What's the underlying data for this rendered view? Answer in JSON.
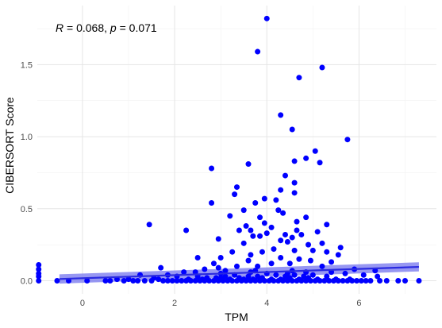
{
  "chart_data": {
    "type": "scatter",
    "title": "",
    "xlabel": "TPM",
    "ylabel": "CIBERSORT Score",
    "xlim": [
      -0.98,
      7.68
    ],
    "ylim": [
      -0.091,
      1.91
    ],
    "x_ticks": [
      0,
      2,
      4,
      6
    ],
    "y_ticks": [
      0.0,
      0.5,
      1.0,
      1.5
    ],
    "x_tick_labels": [
      "0",
      "2",
      "4",
      "6"
    ],
    "y_tick_labels": [
      "0.0",
      "0.5",
      "1.0",
      "1.5"
    ],
    "grid": true,
    "annotation": {
      "r_label": "R",
      "r_value": " = 0.068, ",
      "p_label": "p",
      "p_value": " = 0.071"
    },
    "colors": {
      "points": "#0000ff",
      "line": "#2a2ae0",
      "ribbon": "#8585f0"
    },
    "regression": {
      "x": [
        -0.5,
        7.3
      ],
      "y": [
        0.012,
        0.096
      ],
      "ci_lower": [
        -0.02,
        0.065
      ],
      "ci_upper": [
        0.045,
        0.128
      ]
    },
    "series": [
      {
        "values": [
          [
            4.0,
            1.82
          ],
          [
            3.8,
            1.59
          ],
          [
            5.2,
            1.48
          ],
          [
            4.7,
            1.41
          ],
          [
            4.3,
            1.15
          ],
          [
            4.55,
            1.05
          ],
          [
            5.75,
            0.98
          ],
          [
            5.05,
            0.9
          ],
          [
            5.15,
            0.82
          ],
          [
            4.6,
            0.83
          ],
          [
            3.6,
            0.81
          ],
          [
            4.85,
            0.85
          ],
          [
            2.8,
            0.78
          ],
          [
            4.4,
            0.73
          ],
          [
            4.6,
            0.68
          ],
          [
            3.35,
            0.65
          ],
          [
            4.3,
            0.63
          ],
          [
            4.6,
            0.61
          ],
          [
            3.3,
            0.6
          ],
          [
            3.95,
            0.57
          ],
          [
            4.2,
            0.56
          ],
          [
            2.8,
            0.54
          ],
          [
            3.75,
            0.54
          ],
          [
            4.25,
            0.49
          ],
          [
            4.35,
            0.47
          ],
          [
            3.5,
            0.49
          ],
          [
            4.85,
            0.44
          ],
          [
            3.2,
            0.45
          ],
          [
            3.85,
            0.44
          ],
          [
            4.65,
            0.41
          ],
          [
            5.3,
            0.39
          ],
          [
            1.45,
            0.39
          ],
          [
            3.95,
            0.4
          ],
          [
            4.1,
            0.37
          ],
          [
            3.55,
            0.38
          ],
          [
            3.85,
            0.31
          ],
          [
            4.55,
            0.3
          ],
          [
            2.25,
            0.35
          ],
          [
            3.65,
            0.35
          ],
          [
            3.4,
            0.35
          ],
          [
            3.7,
            0.31
          ],
          [
            4.3,
            0.28
          ],
          [
            2.95,
            0.29
          ],
          [
            4.0,
            0.33
          ],
          [
            4.4,
            0.32
          ],
          [
            4.65,
            0.35
          ],
          [
            5.1,
            0.34
          ],
          [
            4.75,
            0.32
          ],
          [
            5.3,
            0.2
          ],
          [
            5.6,
            0.23
          ],
          [
            4.9,
            0.25
          ],
          [
            4.45,
            0.27
          ],
          [
            5.2,
            0.26
          ],
          [
            5.55,
            0.18
          ],
          [
            3.5,
            0.26
          ],
          [
            4.6,
            0.21
          ],
          [
            5.0,
            0.21
          ],
          [
            3.25,
            0.2
          ],
          [
            3.9,
            0.2
          ],
          [
            4.15,
            0.22
          ],
          [
            3.65,
            0.18
          ],
          [
            2.5,
            0.16
          ],
          [
            3.0,
            0.16
          ],
          [
            4.3,
            0.16
          ],
          [
            4.7,
            0.15
          ],
          [
            4.95,
            0.14
          ],
          [
            3.6,
            0.14
          ],
          [
            2.85,
            0.12
          ],
          [
            4.1,
            0.12
          ],
          [
            4.5,
            0.12
          ],
          [
            5.4,
            0.13
          ],
          [
            5.2,
            0.1
          ],
          [
            3.8,
            0.1
          ],
          [
            3.35,
            0.1
          ],
          [
            2.65,
            0.08
          ],
          [
            1.7,
            0.09
          ],
          [
            2.2,
            0.06
          ],
          [
            5.9,
            0.08
          ],
          [
            6.35,
            0.07
          ],
          [
            4.55,
            0.07
          ],
          [
            3.1,
            0.07
          ],
          [
            4.85,
            0.06
          ],
          [
            2.45,
            0.06
          ],
          [
            3.65,
            0.06
          ],
          [
            1.25,
            0.04
          ],
          [
            1.85,
            0.04
          ],
          [
            5.7,
            0.05
          ],
          [
            6.1,
            0.04
          ],
          [
            6.4,
            0.03
          ],
          [
            2.05,
            0.03
          ],
          [
            3.0,
            0.02
          ],
          [
            4.4,
            0.03
          ],
          [
            5.3,
            0.03
          ],
          [
            1.55,
            0.02
          ],
          [
            2.7,
            0.02
          ],
          [
            3.5,
            0.01
          ],
          [
            -0.95,
            0.11
          ],
          [
            -0.95,
            0.08
          ],
          [
            -0.95,
            0.05
          ],
          [
            -0.95,
            0.03
          ],
          [
            -0.95,
            0.0
          ],
          [
            -0.55,
            0.0
          ],
          [
            -0.3,
            0.0
          ],
          [
            0.1,
            0.0
          ],
          [
            0.5,
            0.0
          ],
          [
            0.6,
            0.0
          ],
          [
            0.75,
            0.01
          ],
          [
            0.9,
            0.0
          ],
          [
            1.0,
            0.01
          ],
          [
            1.1,
            0.0
          ],
          [
            1.2,
            0.0
          ],
          [
            1.35,
            0.0
          ],
          [
            1.5,
            0.0
          ],
          [
            1.65,
            0.01
          ],
          [
            1.75,
            0.0
          ],
          [
            1.85,
            0.0
          ],
          [
            1.95,
            0.0
          ],
          [
            2.05,
            0.0
          ],
          [
            2.15,
            0.0
          ],
          [
            2.25,
            0.0
          ],
          [
            2.35,
            0.0
          ],
          [
            2.45,
            0.0
          ],
          [
            2.55,
            0.0
          ],
          [
            2.65,
            0.0
          ],
          [
            2.75,
            0.0
          ],
          [
            2.85,
            0.0
          ],
          [
            2.95,
            0.0
          ],
          [
            3.05,
            0.0
          ],
          [
            3.15,
            0.0
          ],
          [
            3.25,
            0.0
          ],
          [
            3.35,
            0.0
          ],
          [
            3.45,
            0.0
          ],
          [
            3.55,
            0.0
          ],
          [
            3.65,
            0.0
          ],
          [
            3.75,
            0.0
          ],
          [
            3.85,
            0.0
          ],
          [
            3.95,
            0.0
          ],
          [
            4.05,
            0.0
          ],
          [
            4.15,
            0.0
          ],
          [
            4.25,
            0.0
          ],
          [
            4.35,
            0.0
          ],
          [
            4.45,
            0.0
          ],
          [
            4.55,
            0.0
          ],
          [
            4.65,
            0.0
          ],
          [
            4.75,
            0.0
          ],
          [
            4.85,
            0.0
          ],
          [
            4.95,
            0.0
          ],
          [
            5.05,
            0.0
          ],
          [
            5.15,
            0.0
          ],
          [
            5.25,
            0.0
          ],
          [
            5.35,
            0.0
          ],
          [
            5.45,
            0.0
          ],
          [
            5.55,
            0.0
          ],
          [
            5.65,
            0.0
          ],
          [
            5.75,
            0.0
          ],
          [
            5.85,
            0.0
          ],
          [
            5.95,
            0.0
          ],
          [
            6.05,
            0.0
          ],
          [
            6.15,
            0.0
          ],
          [
            6.25,
            0.0
          ],
          [
            6.45,
            0.0
          ],
          [
            6.6,
            0.0
          ],
          [
            6.85,
            0.0
          ],
          [
            7.0,
            0.0
          ],
          [
            7.3,
            0.0
          ],
          [
            2.3,
            0.01
          ],
          [
            2.6,
            0.01
          ],
          [
            2.9,
            0.02
          ],
          [
            3.2,
            0.01
          ],
          [
            3.4,
            0.02
          ],
          [
            3.7,
            0.01
          ],
          [
            3.9,
            0.02
          ],
          [
            4.1,
            0.01
          ],
          [
            4.3,
            0.01
          ],
          [
            4.5,
            0.02
          ],
          [
            4.7,
            0.01
          ],
          [
            4.9,
            0.02
          ],
          [
            5.1,
            0.01
          ],
          [
            5.5,
            0.01
          ],
          [
            5.8,
            0.01
          ],
          [
            3.1,
            0.03
          ],
          [
            3.8,
            0.03
          ],
          [
            4.2,
            0.04
          ],
          [
            4.6,
            0.04
          ],
          [
            5.0,
            0.04
          ],
          [
            2.5,
            0.03
          ],
          [
            3.3,
            0.04
          ],
          [
            3.6,
            0.03
          ],
          [
            4.8,
            0.03
          ],
          [
            4.0,
            0.05
          ],
          [
            3.0,
            0.05
          ],
          [
            5.4,
            0.06
          ],
          [
            4.45,
            0.05
          ],
          [
            3.75,
            0.07
          ],
          [
            2.95,
            0.09
          ]
        ]
      }
    ]
  }
}
